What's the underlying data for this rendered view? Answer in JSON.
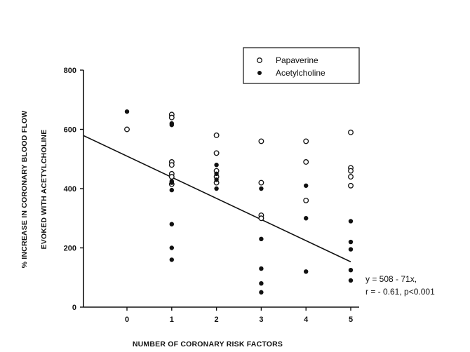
{
  "chart_data": {
    "type": "scatter",
    "title": "",
    "xlabel": "NUMBER OF CORONARY RISK FACTORS",
    "ylabel_lines": [
      "% INCREASE IN CORONARY BLOOD FLOW",
      "EVOKED WITH ACETYLCHOLINE"
    ],
    "xlim": [
      -1,
      5.2
    ],
    "ylim": [
      0,
      800
    ],
    "x_ticks": [
      0,
      1,
      2,
      3,
      4,
      5
    ],
    "y_ticks": [
      0,
      200,
      400,
      600,
      800
    ],
    "grid": false,
    "legend_position": "top-right",
    "series": [
      {
        "name": "Papaverine",
        "marker": "open-circle",
        "points": [
          [
            0,
            600
          ],
          [
            1,
            650
          ],
          [
            1,
            640
          ],
          [
            1,
            490
          ],
          [
            1,
            480
          ],
          [
            1,
            450
          ],
          [
            1,
            440
          ],
          [
            1,
            415
          ],
          [
            2,
            580
          ],
          [
            2,
            520
          ],
          [
            2,
            460
          ],
          [
            2,
            440
          ],
          [
            2,
            420
          ],
          [
            3,
            560
          ],
          [
            3,
            420
          ],
          [
            3,
            310
          ],
          [
            3,
            300
          ],
          [
            4,
            560
          ],
          [
            4,
            490
          ],
          [
            4,
            360
          ],
          [
            5,
            590
          ],
          [
            5,
            470
          ],
          [
            5,
            460
          ],
          [
            5,
            440
          ],
          [
            5,
            410
          ]
        ]
      },
      {
        "name": "Acetylcholine",
        "marker": "filled-circle",
        "points": [
          [
            0,
            660
          ],
          [
            1,
            620
          ],
          [
            1,
            615
          ],
          [
            1,
            425
          ],
          [
            1,
            420
          ],
          [
            1,
            395
          ],
          [
            1,
            280
          ],
          [
            1,
            200
          ],
          [
            1,
            160
          ],
          [
            2,
            480
          ],
          [
            2,
            450
          ],
          [
            2,
            430
          ],
          [
            2,
            400
          ],
          [
            3,
            400
          ],
          [
            3,
            230
          ],
          [
            3,
            130
          ],
          [
            3,
            80
          ],
          [
            3,
            50
          ],
          [
            4,
            410
          ],
          [
            4,
            300
          ],
          [
            4,
            120
          ],
          [
            5,
            290
          ],
          [
            5,
            220
          ],
          [
            5,
            195
          ],
          [
            5,
            125
          ],
          [
            5,
            90
          ]
        ]
      }
    ],
    "regression_line": {
      "x_start": -1,
      "x_end": 5,
      "intercept": 508,
      "slope": -71
    },
    "annotation_lines": [
      "y = 508 - 71x,",
      "r = - 0.61,   p<0.001"
    ]
  }
}
